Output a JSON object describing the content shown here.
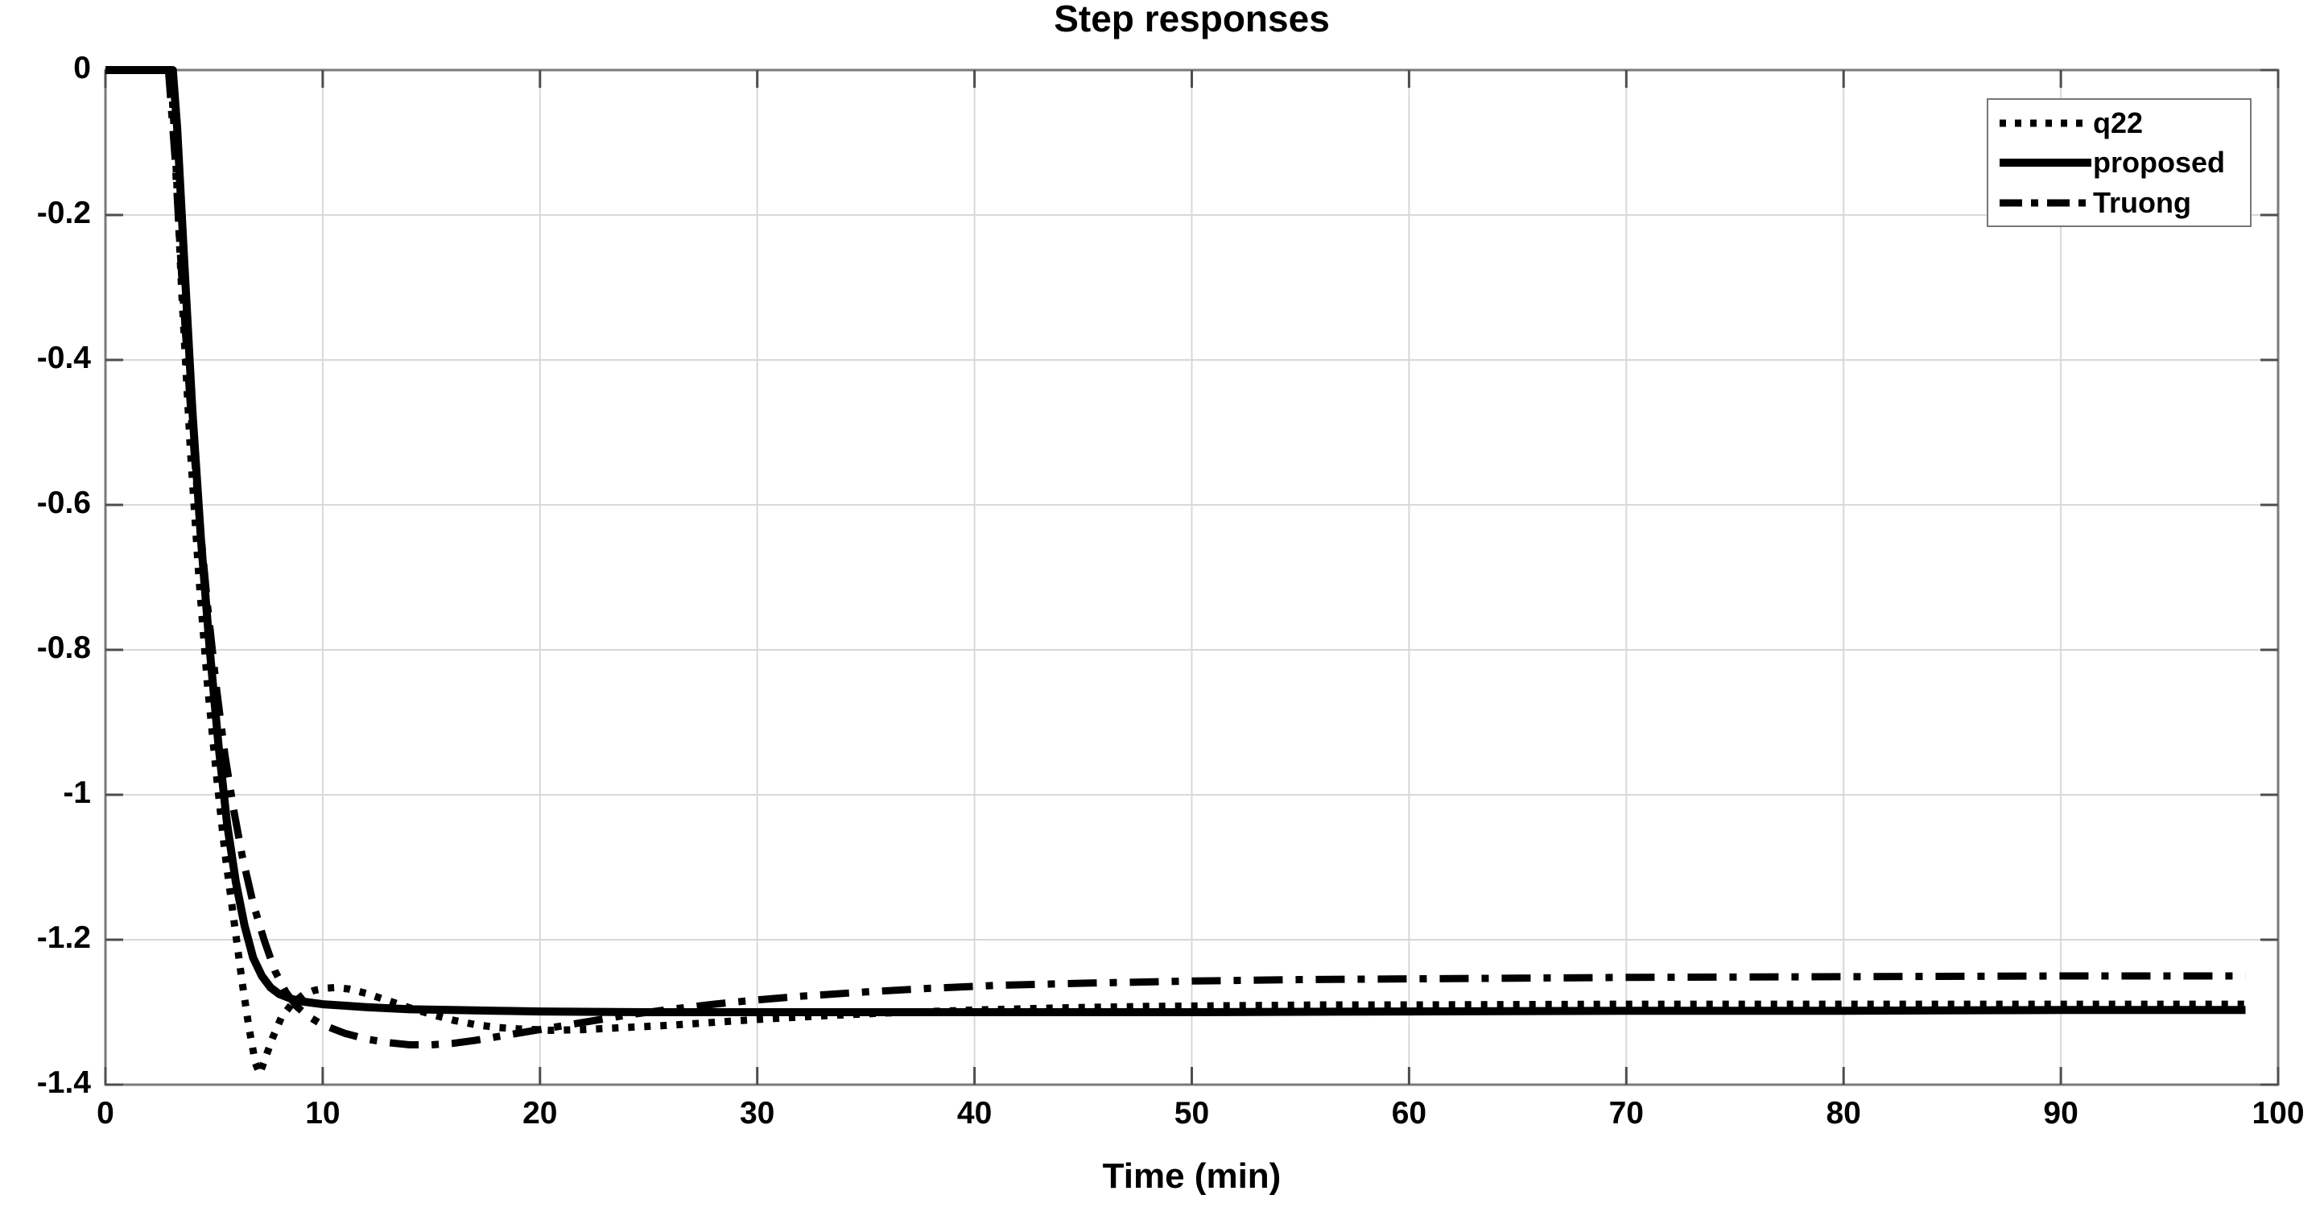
{
  "title": "Step responses",
  "xlabel": "Time (min)",
  "chart_data": {
    "type": "line",
    "title": "Step responses",
    "xlabel": "Time (min)",
    "ylabel": "",
    "xlim": [
      0,
      100
    ],
    "ylim": [
      -1.4,
      0
    ],
    "xticks": [
      0,
      10,
      20,
      30,
      40,
      50,
      60,
      70,
      80,
      90,
      100
    ],
    "xtick_labels": [
      "0",
      "10",
      "20",
      "30",
      "40",
      "50",
      "60",
      "70",
      "80",
      "90",
      "100"
    ],
    "yticks": [
      0,
      -0.2,
      -0.4,
      -0.6,
      -0.8,
      -1,
      -1.2,
      -1.4
    ],
    "ytick_labels": [
      "0",
      "-0.2",
      "-0.4",
      "-0.6",
      "-0.8",
      "-1",
      "-1.2",
      "-1.4"
    ],
    "grid": true,
    "legend_position": "top-right",
    "axis_color": "#7a7a7a",
    "grid_color": "#d8d8d8",
    "tick_color": "#4d4d4d",
    "series": [
      {
        "name": "q22",
        "style": "dotted",
        "color": "#000000",
        "width": 9,
        "points": [
          [
            0,
            0
          ],
          [
            3.0,
            0
          ],
          [
            3.2,
            -0.1
          ],
          [
            3.5,
            -0.3
          ],
          [
            3.9,
            -0.52
          ],
          [
            4.3,
            -0.7
          ],
          [
            4.7,
            -0.85
          ],
          [
            5.1,
            -0.97
          ],
          [
            5.5,
            -1.08
          ],
          [
            5.9,
            -1.17
          ],
          [
            6.3,
            -1.26
          ],
          [
            6.6,
            -1.32
          ],
          [
            6.9,
            -1.37
          ],
          [
            7.1,
            -1.385
          ],
          [
            7.4,
            -1.36
          ],
          [
            7.7,
            -1.335
          ],
          [
            8.1,
            -1.307
          ],
          [
            8.6,
            -1.288
          ],
          [
            9.1,
            -1.276
          ],
          [
            9.6,
            -1.27
          ],
          [
            10.1,
            -1.267
          ],
          [
            10.6,
            -1.266
          ],
          [
            11.2,
            -1.268
          ],
          [
            12,
            -1.274
          ],
          [
            13,
            -1.284
          ],
          [
            14,
            -1.294
          ],
          [
            15,
            -1.303
          ],
          [
            16,
            -1.311
          ],
          [
            17,
            -1.317
          ],
          [
            18,
            -1.321
          ],
          [
            19,
            -1.323
          ],
          [
            20.5,
            -1.325
          ],
          [
            22,
            -1.324
          ],
          [
            24,
            -1.321
          ],
          [
            26,
            -1.318
          ],
          [
            28,
            -1.314
          ],
          [
            30,
            -1.31
          ],
          [
            33,
            -1.305
          ],
          [
            36,
            -1.301
          ],
          [
            40,
            -1.297
          ],
          [
            44,
            -1.294
          ],
          [
            48,
            -1.292
          ],
          [
            52,
            -1.291
          ],
          [
            56,
            -1.29
          ],
          [
            60,
            -1.29
          ],
          [
            70,
            -1.289
          ],
          [
            80,
            -1.289
          ],
          [
            90,
            -1.289
          ],
          [
            98.5,
            -1.289
          ]
        ]
      },
      {
        "name": "proposed",
        "style": "solid",
        "color": "#000000",
        "width": 10,
        "points": [
          [
            0,
            0
          ],
          [
            3.1,
            0
          ],
          [
            3.3,
            -0.08
          ],
          [
            3.6,
            -0.25
          ],
          [
            4.0,
            -0.47
          ],
          [
            4.4,
            -0.65
          ],
          [
            4.8,
            -0.8
          ],
          [
            5.2,
            -0.93
          ],
          [
            5.6,
            -1.04
          ],
          [
            6.0,
            -1.12
          ],
          [
            6.4,
            -1.18
          ],
          [
            6.8,
            -1.225
          ],
          [
            7.2,
            -1.25
          ],
          [
            7.6,
            -1.266
          ],
          [
            8.0,
            -1.275
          ],
          [
            8.5,
            -1.281
          ],
          [
            9,
            -1.285
          ],
          [
            10,
            -1.289
          ],
          [
            11,
            -1.291
          ],
          [
            12,
            -1.293
          ],
          [
            14,
            -1.296
          ],
          [
            16,
            -1.297
          ],
          [
            18,
            -1.298
          ],
          [
            20,
            -1.299
          ],
          [
            25,
            -1.3
          ],
          [
            30,
            -1.3
          ],
          [
            40,
            -1.3
          ],
          [
            50,
            -1.3
          ],
          [
            60,
            -1.299
          ],
          [
            70,
            -1.298
          ],
          [
            80,
            -1.298
          ],
          [
            90,
            -1.297
          ],
          [
            98.5,
            -1.297
          ]
        ]
      },
      {
        "name": "Truong",
        "style": "dashdot",
        "color": "#000000",
        "width": 9,
        "points": [
          [
            0,
            0
          ],
          [
            2.9,
            0
          ],
          [
            3.2,
            -0.12
          ],
          [
            3.5,
            -0.28
          ],
          [
            3.9,
            -0.46
          ],
          [
            4.3,
            -0.61
          ],
          [
            4.7,
            -0.74
          ],
          [
            5.1,
            -0.85
          ],
          [
            5.5,
            -0.945
          ],
          [
            5.9,
            -1.02
          ],
          [
            6.3,
            -1.085
          ],
          [
            6.8,
            -1.15
          ],
          [
            7.3,
            -1.2
          ],
          [
            7.8,
            -1.243
          ],
          [
            8.3,
            -1.272
          ],
          [
            8.8,
            -1.292
          ],
          [
            9.3,
            -1.305
          ],
          [
            9.8,
            -1.314
          ],
          [
            10.4,
            -1.322
          ],
          [
            11,
            -1.329
          ],
          [
            12,
            -1.337
          ],
          [
            13,
            -1.342
          ],
          [
            14,
            -1.345
          ],
          [
            15,
            -1.345
          ],
          [
            16,
            -1.343
          ],
          [
            17,
            -1.339
          ],
          [
            18,
            -1.334
          ],
          [
            19,
            -1.329
          ],
          [
            20,
            -1.324
          ],
          [
            22,
            -1.314
          ],
          [
            24,
            -1.304
          ],
          [
            26,
            -1.296
          ],
          [
            28,
            -1.289
          ],
          [
            30,
            -1.283
          ],
          [
            32,
            -1.278
          ],
          [
            35,
            -1.272
          ],
          [
            38,
            -1.267
          ],
          [
            41,
            -1.263
          ],
          [
            45,
            -1.26
          ],
          [
            50,
            -1.257
          ],
          [
            55,
            -1.255
          ],
          [
            60,
            -1.254
          ],
          [
            70,
            -1.252
          ],
          [
            80,
            -1.251
          ],
          [
            90,
            -1.25
          ],
          [
            98.5,
            -1.25
          ]
        ]
      }
    ]
  },
  "legend": {
    "items": [
      {
        "label": "q22"
      },
      {
        "label": "proposed"
      },
      {
        "label": "Truong"
      }
    ]
  }
}
